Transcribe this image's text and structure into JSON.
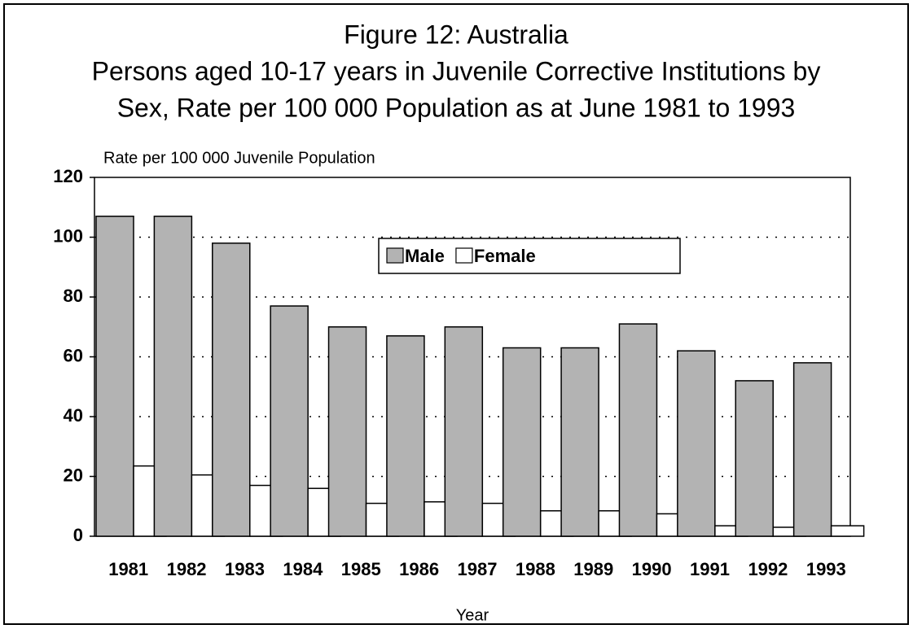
{
  "chart_data": {
    "type": "bar",
    "title": "Figure 12: Australia",
    "subtitle": [
      "Persons aged 10-17 years in Juvenile Corrective Institutions by",
      "Sex, Rate per 100 000 Population as at June 1981 to 1993"
    ],
    "y_label": "Rate per 100 000 Juvenile Population",
    "x_label": "Year",
    "categories": [
      "1981",
      "1982",
      "1983",
      "1984",
      "1985",
      "1986",
      "1987",
      "1988",
      "1989",
      "1990",
      "1991",
      "1992",
      "1993"
    ],
    "series": [
      {
        "name": "Male",
        "color": "#b3b3b3",
        "values": [
          107,
          107,
          98,
          77,
          70,
          67,
          70,
          63,
          63,
          71,
          62,
          52,
          58
        ]
      },
      {
        "name": "Female",
        "color": "#ffffff",
        "values": [
          23.5,
          20.5,
          17,
          16,
          11,
          11.5,
          11,
          8.5,
          8.5,
          7.5,
          3.5,
          3,
          3.5
        ]
      }
    ],
    "ylim": [
      0,
      120
    ],
    "yticks": [
      0,
      20,
      40,
      60,
      80,
      100,
      120
    ],
    "grid": true
  }
}
